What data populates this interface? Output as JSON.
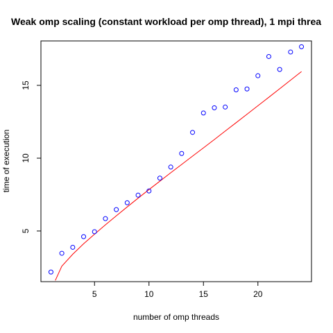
{
  "chart_data": {
    "type": "scatter",
    "title": "Weak omp scaling (constant workload per omp thread), 1 mpi threa",
    "xlabel": "number of omp threads",
    "ylabel": "time of execution",
    "xlim": [
      0.08,
      24.92
    ],
    "ylim": [
      1.52,
      18.05
    ],
    "x_ticks": [
      5,
      10,
      15,
      20
    ],
    "y_ticks": [
      5,
      10,
      15
    ],
    "grid": false,
    "legend": "none",
    "colors": {
      "points": "#0000ff",
      "fit": "#ff0000",
      "axis": "#000000"
    },
    "series": [
      {
        "type": "scatter",
        "marker": "open-circle",
        "x": [
          1,
          2,
          3,
          4,
          5,
          6,
          7,
          8,
          9,
          10,
          11,
          12,
          13,
          14,
          15,
          16,
          17,
          18,
          19,
          20,
          21,
          22,
          23,
          24
        ],
        "y": [
          2.18,
          3.47,
          3.88,
          4.61,
          4.95,
          5.85,
          6.47,
          6.94,
          7.46,
          7.75,
          8.63,
          9.39,
          10.32,
          11.77,
          13.1,
          13.46,
          13.51,
          14.69,
          14.75,
          15.66,
          16.98,
          16.09,
          17.29,
          17.65
        ]
      },
      {
        "type": "line",
        "x": [
          1.4,
          2,
          3,
          4,
          5,
          6,
          7,
          8,
          9,
          10,
          11,
          12,
          13,
          14,
          15,
          16,
          17,
          18,
          19,
          20,
          21,
          22,
          23,
          24
        ],
        "y": [
          1.6,
          2.58,
          3.4,
          4.12,
          4.78,
          5.42,
          6.04,
          6.65,
          7.25,
          7.84,
          8.42,
          9.0,
          9.57,
          10.14,
          10.71,
          11.28,
          11.86,
          12.44,
          13.02,
          13.6,
          14.18,
          14.77,
          15.36,
          15.95
        ]
      }
    ]
  }
}
